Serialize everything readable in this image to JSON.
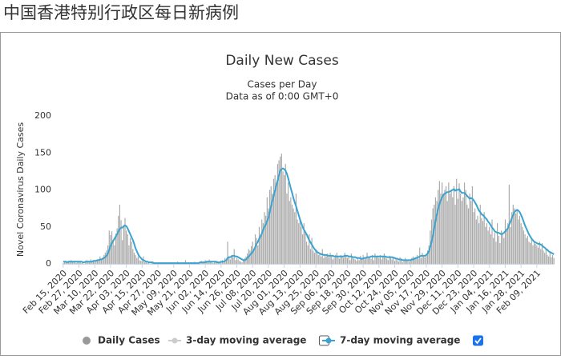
{
  "page_title": "中国香港特别行政区每日新病例",
  "chart_data": {
    "type": "bar",
    "title": "Daily New Cases",
    "subtitle": "Cases per Day",
    "note": "Data as of 0:00 GMT+0",
    "y_label": "Novel Coronavirus Daily Cases",
    "ylim": [
      0,
      200
    ],
    "yticks": [
      0,
      50,
      100,
      150,
      200
    ],
    "grid": false,
    "categories": [
      "Feb 15, 2020",
      null,
      null,
      null,
      null,
      null,
      null,
      null,
      null,
      null,
      null,
      null,
      "Feb 27, 2020",
      null,
      null,
      null,
      null,
      null,
      null,
      null,
      null,
      null,
      null,
      null,
      "Mar 10, 2020",
      null,
      null,
      null,
      null,
      null,
      null,
      null,
      null,
      null,
      null,
      null,
      "Mar 22, 2020",
      null,
      null,
      null,
      null,
      null,
      null,
      null,
      null,
      null,
      null,
      null,
      "Apr 03, 2020",
      null,
      null,
      null,
      null,
      null,
      null,
      null,
      null,
      null,
      null,
      null,
      "Apr 15, 2020",
      null,
      null,
      null,
      null,
      null,
      null,
      null,
      null,
      null,
      null,
      null,
      "Apr 27, 2020",
      null,
      null,
      null,
      null,
      null,
      null,
      null,
      null,
      null,
      null,
      null,
      "May 09, 2020",
      null,
      null,
      null,
      null,
      null,
      null,
      null,
      null,
      null,
      null,
      null,
      "May 21, 2020",
      null,
      null,
      null,
      null,
      null,
      null,
      null,
      null,
      null,
      null,
      null,
      "Jun 02, 2020",
      null,
      null,
      null,
      null,
      null,
      null,
      null,
      null,
      null,
      null,
      null,
      "Jun 14, 2020",
      null,
      null,
      null,
      null,
      null,
      null,
      null,
      null,
      null,
      null,
      null,
      "Jun 26, 2020",
      null,
      null,
      null,
      null,
      null,
      null,
      null,
      null,
      null,
      null,
      null,
      "Jul 08, 2020",
      null,
      null,
      null,
      null,
      null,
      null,
      null,
      null,
      null,
      null,
      null,
      "Jul 20, 2020",
      null,
      null,
      null,
      null,
      null,
      null,
      null,
      null,
      null,
      null,
      null,
      "Aug 01, 2020",
      null,
      null,
      null,
      null,
      null,
      null,
      null,
      null,
      null,
      null,
      null,
      "Aug 13, 2020",
      null,
      null,
      null,
      null,
      null,
      null,
      null,
      null,
      null,
      null,
      null,
      "Aug 25, 2020",
      null,
      null,
      null,
      null,
      null,
      null,
      null,
      null,
      null,
      null,
      null,
      "Sep 06, 2020",
      null,
      null,
      null,
      null,
      null,
      null,
      null,
      null,
      null,
      null,
      null,
      "Sep 18, 2020",
      null,
      null,
      null,
      null,
      null,
      null,
      null,
      null,
      null,
      null,
      null,
      "Sep 30, 2020",
      null,
      null,
      null,
      null,
      null,
      null,
      null,
      null,
      null,
      null,
      null,
      "Oct 12, 2020",
      null,
      null,
      null,
      null,
      null,
      null,
      null,
      null,
      null,
      null,
      null,
      "Oct 24, 2020",
      null,
      null,
      null,
      null,
      null,
      null,
      null,
      null,
      null,
      null,
      null,
      "Nov 05, 2020",
      null,
      null,
      null,
      null,
      null,
      null,
      null,
      null,
      null,
      null,
      null,
      "Nov 17, 2020",
      null,
      null,
      null,
      null,
      null,
      null,
      null,
      null,
      null,
      null,
      null,
      "Nov 29, 2020",
      null,
      null,
      null,
      null,
      null,
      null,
      null,
      null,
      null,
      null,
      null,
      "Dec 11, 2020",
      null,
      null,
      null,
      null,
      null,
      null,
      null,
      null,
      null,
      null,
      null,
      "Dec 23, 2020",
      null,
      null,
      null,
      null,
      null,
      null,
      null,
      null,
      null,
      null,
      null,
      "Jan 04, 2021",
      null,
      null,
      null,
      null,
      null,
      null,
      null,
      null,
      null,
      null,
      null,
      "Jan 16, 2021",
      null,
      null,
      null,
      null,
      null,
      null,
      null,
      null,
      null,
      null,
      null,
      "Jan 28, 2021",
      null,
      null,
      null,
      null,
      null,
      null,
      null,
      null,
      null,
      null,
      null,
      "Feb 09, 2021",
      null,
      null,
      null,
      null,
      null,
      null,
      null,
      null,
      null,
      null,
      null,
      null,
      null
    ],
    "series": [
      {
        "name": "Daily Cases",
        "type": "bar",
        "color": "#a8a8a8",
        "visible": true,
        "checkbox": null,
        "values": [
          1,
          2,
          3,
          1,
          4,
          2,
          5,
          3,
          2,
          4,
          1,
          3,
          2,
          4,
          1,
          3,
          0,
          2,
          5,
          3,
          2,
          6,
          4,
          3,
          5,
          3,
          6,
          4,
          10,
          5,
          8,
          12,
          15,
          18,
          25,
          45,
          39,
          44,
          30,
          25,
          41,
          48,
          65,
          80,
          59,
          32,
          51,
          62,
          45,
          40,
          25,
          35,
          30,
          20,
          15,
          12,
          8,
          10,
          5,
          4,
          4,
          10,
          2,
          3,
          1,
          2,
          0,
          1,
          2,
          0,
          1,
          0,
          0,
          1,
          0,
          2,
          0,
          1,
          0,
          0,
          1,
          0,
          0,
          2,
          1,
          0,
          0,
          3,
          0,
          1,
          0,
          0,
          1,
          5,
          1,
          0,
          0,
          2,
          1,
          0,
          3,
          1,
          0,
          2,
          1,
          4,
          2,
          3,
          5,
          2,
          3,
          6,
          4,
          2,
          1,
          3,
          2,
          4,
          1,
          2,
          3,
          5,
          2,
          8,
          4,
          30,
          10,
          6,
          12,
          9,
          20,
          5,
          8,
          6,
          4,
          3,
          2,
          5,
          8,
          10,
          14,
          20,
          18,
          24,
          30,
          20,
          40,
          35,
          25,
          50,
          40,
          60,
          55,
          70,
          65,
          90,
          75,
          100,
          105,
          95,
          115,
          120,
          110,
          135,
          140,
          145,
          149,
          125,
          120,
          135,
          95,
          110,
          85,
          90,
          80,
          75,
          70,
          95,
          60,
          55,
          60,
          50,
          40,
          55,
          45,
          30,
          25,
          40,
          20,
          35,
          18,
          15,
          20,
          18,
          12,
          15,
          10,
          20,
          8,
          12,
          10,
          14,
          9,
          15,
          10,
          6,
          8,
          12,
          15,
          9,
          7,
          12,
          10,
          8,
          15,
          12,
          8,
          10,
          5,
          14,
          9,
          7,
          6,
          4,
          8,
          5,
          11,
          6,
          12,
          6,
          9,
          15,
          8,
          10,
          7,
          12,
          5,
          14,
          9,
          11,
          8,
          12,
          6,
          10,
          14,
          9,
          7,
          5,
          11,
          8,
          6,
          10,
          4,
          7,
          5,
          3,
          9,
          6,
          2,
          5,
          8,
          4,
          6,
          3,
          5,
          8,
          10,
          6,
          9,
          12,
          7,
          22,
          8,
          15,
          10,
          9,
          13,
          18,
          25,
          45,
          60,
          75,
          80,
          90,
          85,
          100,
          112,
          95,
          110,
          95,
          100,
          105,
          85,
          110,
          95,
          100,
          90,
          105,
          80,
          115,
          88,
          109,
          95,
          85,
          90,
          110,
          100,
          80,
          75,
          95,
          85,
          105,
          70,
          75,
          60,
          65,
          55,
          80,
          62,
          58,
          70,
          50,
          55,
          45,
          50,
          40,
          60,
          35,
          42,
          30,
          55,
          38,
          28,
          45,
          40,
          35,
          60,
          45,
          55,
          107,
          50,
          70,
          80,
          75,
          68,
          72,
          60,
          65,
          55,
          50,
          45,
          40,
          35,
          38,
          30,
          28,
          35,
          25,
          30,
          27,
          25,
          22,
          30,
          20,
          28,
          18,
          15,
          20,
          12,
          10,
          15,
          9,
          12,
          8
        ]
      },
      {
        "name": "3-day moving average",
        "type": "line",
        "color": "#cccccc",
        "visible": false,
        "checkbox": false
      },
      {
        "name": "7-day moving average",
        "type": "line",
        "color": "#3ba3cf",
        "visible": true,
        "checkbox": true,
        "values": [
          3,
          3,
          3,
          2,
          3,
          3,
          3,
          3,
          3,
          3,
          3,
          3,
          3,
          3,
          3,
          2,
          2,
          3,
          3,
          3,
          3,
          3,
          3,
          4,
          4,
          4,
          5,
          5,
          6,
          6,
          7,
          8,
          9,
          11,
          14,
          19,
          24,
          28,
          31,
          34,
          37,
          40,
          44,
          47,
          49,
          49,
          51,
          52,
          51,
          48,
          44,
          40,
          36,
          32,
          27,
          21,
          17,
          13,
          10,
          8,
          6,
          5,
          4,
          3,
          3,
          2,
          2,
          2,
          2,
          1,
          1,
          1,
          1,
          1,
          1,
          1,
          1,
          1,
          1,
          1,
          1,
          1,
          1,
          1,
          1,
          1,
          1,
          1,
          1,
          1,
          1,
          1,
          1,
          1,
          1,
          1,
          1,
          1,
          1,
          1,
          1,
          1,
          1,
          1,
          2,
          2,
          2,
          2,
          2,
          3,
          3,
          3,
          3,
          3,
          3,
          3,
          3,
          2,
          2,
          2,
          3,
          3,
          3,
          4,
          5,
          8,
          9,
          9,
          10,
          11,
          11,
          10,
          10,
          9,
          8,
          7,
          6,
          5,
          5,
          6,
          8,
          10,
          12,
          14,
          16,
          19,
          23,
          27,
          30,
          34,
          37,
          41,
          46,
          50,
          53,
          58,
          62,
          70,
          78,
          85,
          92,
          99,
          106,
          113,
          120,
          126,
          128,
          129,
          128,
          126,
          122,
          116,
          109,
          102,
          96,
          89,
          83,
          78,
          72,
          66,
          60,
          55,
          50,
          46,
          43,
          40,
          36,
          32,
          29,
          26,
          23,
          20,
          18,
          16,
          15,
          14,
          13,
          13,
          12,
          12,
          12,
          11,
          11,
          11,
          11,
          11,
          10,
          10,
          10,
          10,
          10,
          10,
          10,
          10,
          11,
          11,
          11,
          10,
          10,
          10,
          9,
          9,
          9,
          8,
          8,
          8,
          7,
          7,
          7,
          8,
          8,
          9,
          9,
          9,
          10,
          10,
          10,
          10,
          10,
          10,
          10,
          10,
          10,
          10,
          10,
          10,
          9,
          9,
          9,
          9,
          9,
          8,
          8,
          7,
          7,
          6,
          6,
          6,
          5,
          5,
          5,
          5,
          5,
          5,
          5,
          6,
          6,
          7,
          8,
          8,
          9,
          10,
          11,
          11,
          11,
          11,
          12,
          14,
          17,
          23,
          30,
          38,
          48,
          58,
          67,
          74,
          81,
          86,
          90,
          93,
          95,
          96,
          97,
          97,
          98,
          99,
          100,
          101,
          99,
          100,
          100,
          101,
          98,
          96,
          96,
          96,
          94,
          92,
          90,
          88,
          89,
          88,
          86,
          83,
          80,
          76,
          72,
          70,
          67,
          66,
          64,
          62,
          60,
          57,
          55,
          52,
          49,
          47,
          44,
          43,
          42,
          42,
          41,
          40,
          41,
          42,
          44,
          46,
          48,
          53,
          57,
          62,
          66,
          70,
          72,
          73,
          72,
          70,
          66,
          62,
          57,
          52,
          48,
          44,
          40,
          37,
          34,
          32,
          30,
          29,
          28,
          27,
          27,
          26,
          25,
          23,
          22,
          20,
          19,
          17,
          16,
          15,
          14,
          13
        ]
      }
    ]
  }
}
